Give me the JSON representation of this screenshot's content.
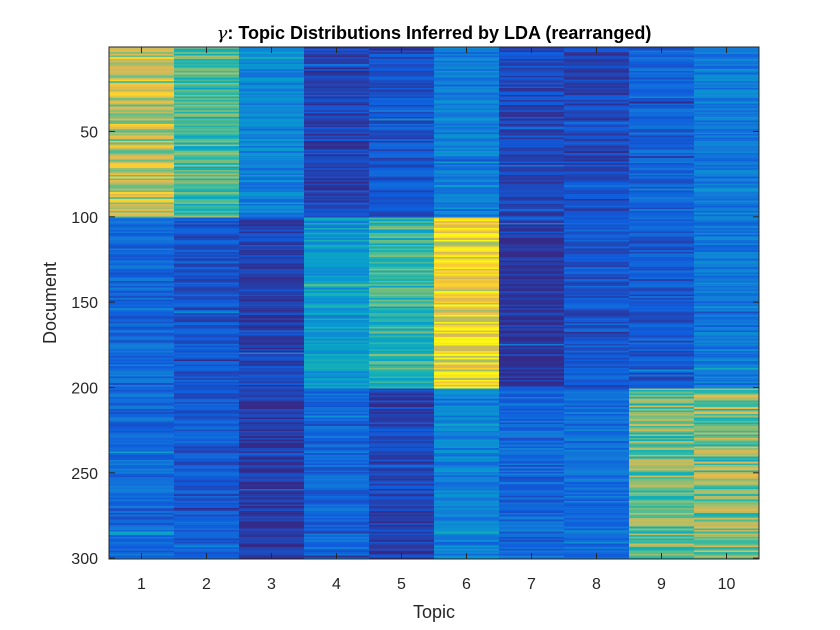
{
  "chart_data": {
    "type": "heatmap",
    "title_symbol": "γ",
    "title_rest": ": Topic Distributions Inferred by LDA (rearranged)",
    "xlabel": "Topic",
    "ylabel": "Document",
    "x_categories": [
      "1",
      "2",
      "3",
      "4",
      "5",
      "6",
      "7",
      "8",
      "9",
      "10"
    ],
    "y_ticks": [
      50,
      100,
      150,
      200,
      250,
      300
    ],
    "y_range": [
      1,
      300
    ],
    "colormap": "parula",
    "color_range": [
      0,
      1
    ],
    "n_documents": 300,
    "row_groups": [
      {
        "documents": [
          1,
          100
        ],
        "mean_intensity_by_topic": [
          0.65,
          0.47,
          0.22,
          0.05,
          0.09,
          0.22,
          0.06,
          0.06,
          0.12,
          0.19
        ]
      },
      {
        "documents": [
          101,
          200
        ],
        "mean_intensity_by_topic": [
          0.14,
          0.09,
          0.05,
          0.3,
          0.44,
          0.8,
          0.02,
          0.09,
          0.1,
          0.18
        ]
      },
      {
        "documents": [
          201,
          300
        ],
        "mean_intensity_by_topic": [
          0.14,
          0.1,
          0.03,
          0.13,
          0.05,
          0.21,
          0.14,
          0.16,
          0.53,
          0.55
        ]
      }
    ]
  }
}
